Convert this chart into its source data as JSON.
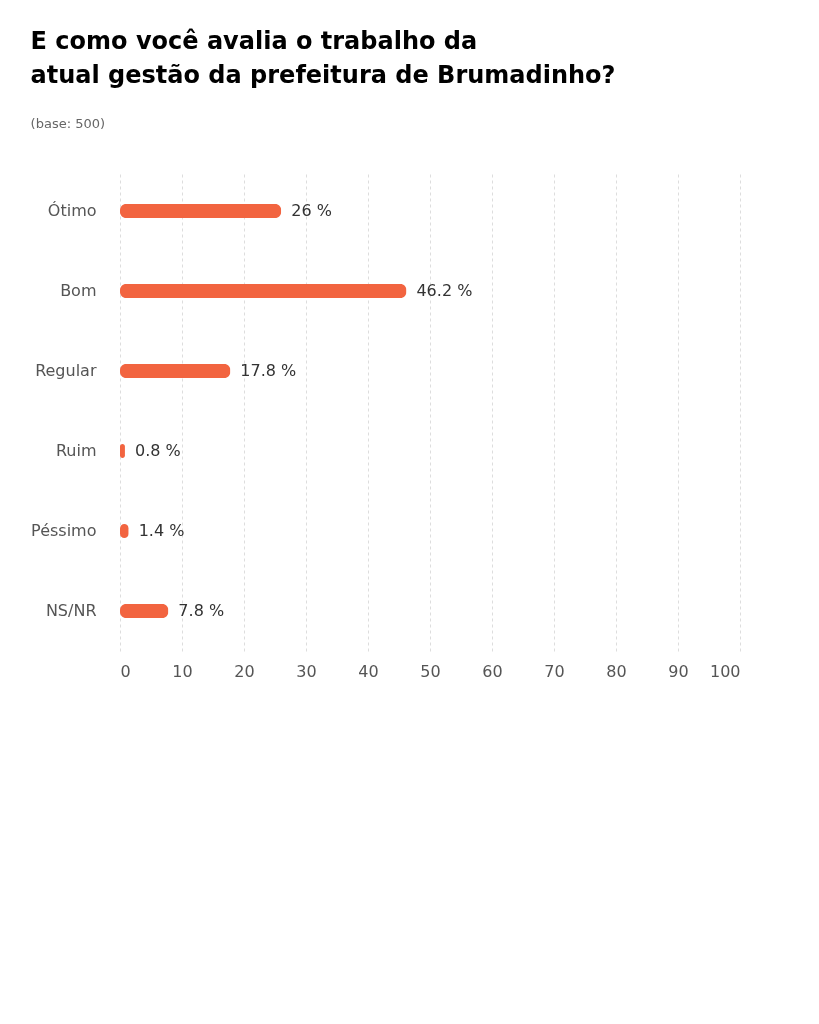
{
  "chart_data": {
    "type": "bar",
    "orientation": "horizontal",
    "title": "E como você avalia o trabalho da atual gestão da prefeitura de Brumadinho?",
    "subtitle": "(base: 500)",
    "categories": [
      "Ótimo",
      "Bom",
      "Regular",
      "Ruim",
      "Péssimo",
      "NS/NR"
    ],
    "values": [
      26,
      46.2,
      17.8,
      0.8,
      1.4,
      7.8
    ],
    "value_labels": [
      "26 %",
      "46.2 %",
      "17.8 %",
      "0.8 %",
      "1.4 %",
      "7.8 %"
    ],
    "color": "#f26440",
    "xlim": [
      0,
      100
    ],
    "xticks": [
      0,
      10,
      20,
      30,
      40,
      50,
      60,
      70,
      80,
      90,
      100
    ],
    "grid": "x"
  }
}
